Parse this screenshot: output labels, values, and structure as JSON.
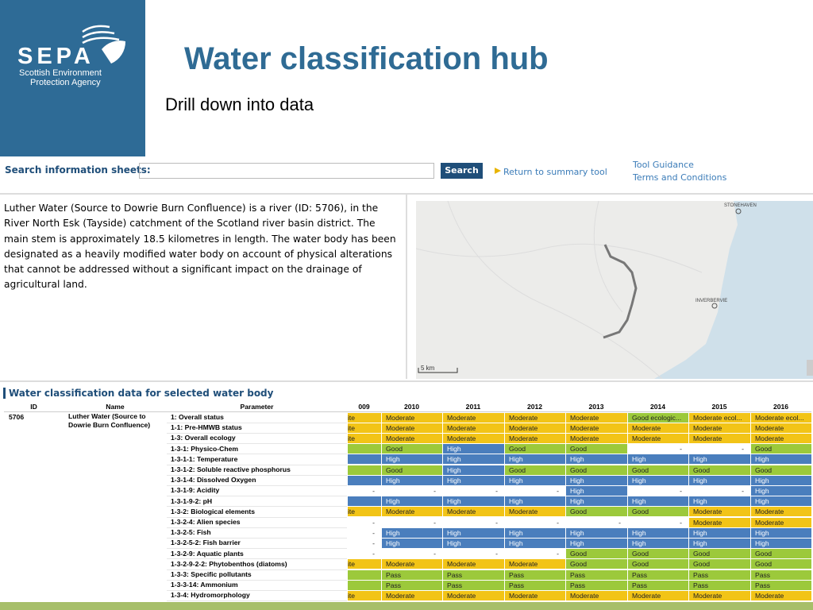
{
  "logo": {
    "name": "SEPA",
    "line1": "Scottish Environment",
    "line2": "Protection Agency"
  },
  "header": {
    "title": "Water classification hub",
    "subtitle": "Drill down into data"
  },
  "search": {
    "label": "Search information sheets:",
    "button": "Search",
    "return_link": "Return to summary tool",
    "links": [
      "Tool Guidance",
      "Terms and Conditions"
    ]
  },
  "description": "Luther Water (Source to Dowrie Burn Confluence) is a river (ID: 5706), in the River North Esk (Tayside) catchment of the Scotland river basin district. The main stem is approximately 18.5 kilometres in length. The water body has been designated as a heavily modified water body on account of physical alterations that cannot be addressed without a significant impact on the drainage of agricultural land.",
  "map": {
    "labels": [
      "STONEHAVEN",
      "INVERBERVIE"
    ],
    "scale": "5 km"
  },
  "table": {
    "title": "Water classification data for selected water body",
    "headers": [
      "ID",
      "Name",
      "Parameter",
      "009",
      "2010",
      "2011",
      "2012",
      "2013",
      "2014",
      "2015",
      "2016"
    ],
    "id": "5706",
    "name": "Luther Water (Source to Dowrie Burn Confluence)",
    "colors": {
      "moderate": "#f2c417",
      "good": "#9cc93b",
      "high": "#4a7ebd"
    },
    "rows": [
      {
        "parameter": "1: Overall status",
        "cells": [
          "ite",
          "Moderate",
          "Moderate",
          "Moderate",
          "Moderate",
          "Good ecologic...",
          "Moderate ecol...",
          "Moderate ecol..."
        ],
        "fills": [
          "moderate",
          "moderate",
          "moderate",
          "moderate",
          "moderate",
          "good",
          "moderate",
          "moderate"
        ]
      },
      {
        "parameter": "1-1: Pre-HMWB status",
        "cells": [
          "ite",
          "Moderate",
          "Moderate",
          "Moderate",
          "Moderate",
          "Moderate",
          "Moderate",
          "Moderate"
        ],
        "fills": [
          "moderate",
          "moderate",
          "moderate",
          "moderate",
          "moderate",
          "moderate",
          "moderate",
          "moderate"
        ]
      },
      {
        "parameter": "1-3: Overall ecology",
        "cells": [
          "ite",
          "Moderate",
          "Moderate",
          "Moderate",
          "Moderate",
          "Moderate",
          "Moderate",
          "Moderate"
        ],
        "fills": [
          "moderate",
          "moderate",
          "moderate",
          "moderate",
          "moderate",
          "moderate",
          "moderate",
          "moderate"
        ]
      },
      {
        "parameter": "1-3-1: Physico-Chem",
        "cells": [
          null,
          "Good",
          "High",
          "Good",
          "Good",
          "-",
          "-",
          "Good"
        ],
        "fills": [
          "good",
          "good",
          "high",
          "good",
          "good",
          null,
          null,
          "good"
        ]
      },
      {
        "parameter": "1-3-1-1: Temperature",
        "cells": [
          null,
          "High",
          "High",
          "High",
          "High",
          "High",
          "High",
          "High"
        ],
        "fills": [
          "high",
          "high",
          "high",
          "high",
          "high",
          "high",
          "high",
          "high"
        ]
      },
      {
        "parameter": "1-3-1-2: Soluble reactive phosphorus",
        "cells": [
          null,
          "Good",
          "High",
          "Good",
          "Good",
          "Good",
          "Good",
          "Good"
        ],
        "fills": [
          "good",
          "good",
          "high",
          "good",
          "good",
          "good",
          "good",
          "good"
        ]
      },
      {
        "parameter": "1-3-1-4: Dissolved Oxygen",
        "cells": [
          null,
          "High",
          "High",
          "High",
          "High",
          "High",
          "High",
          "High"
        ],
        "fills": [
          "high",
          "high",
          "high",
          "high",
          "high",
          "high",
          "high",
          "high"
        ]
      },
      {
        "parameter": "1-3-1-9: Acidity",
        "cells": [
          "-",
          "-",
          "-",
          "-",
          "High",
          "-",
          "-",
          "High"
        ],
        "fills": [
          null,
          null,
          null,
          null,
          "high",
          null,
          null,
          "high"
        ]
      },
      {
        "parameter": "1-3-1-9-2: pH",
        "cells": [
          null,
          "High",
          "High",
          "High",
          "High",
          "High",
          "High",
          "High"
        ],
        "fills": [
          "high",
          "high",
          "high",
          "high",
          "high",
          "high",
          "high",
          "high"
        ]
      },
      {
        "parameter": "1-3-2: Biological elements",
        "cells": [
          "ite",
          "Moderate",
          "Moderate",
          "Moderate",
          "Good",
          "Good",
          "Moderate",
          "Moderate"
        ],
        "fills": [
          "moderate",
          "moderate",
          "moderate",
          "moderate",
          "good",
          "good",
          "moderate",
          "moderate"
        ]
      },
      {
        "parameter": "1-3-2-4: Alien species",
        "cells": [
          "-",
          "-",
          "-",
          "-",
          "-",
          "-",
          "Moderate",
          "Moderate"
        ],
        "fills": [
          null,
          null,
          null,
          null,
          null,
          null,
          "moderate",
          "moderate"
        ]
      },
      {
        "parameter": "1-3-2-5: Fish",
        "cells": [
          "-",
          "High",
          "High",
          "High",
          "High",
          "High",
          "High",
          "High"
        ],
        "fills": [
          null,
          "high",
          "high",
          "high",
          "high",
          "high",
          "high",
          "high"
        ]
      },
      {
        "parameter": "1-3-2-5-2: Fish barrier",
        "cells": [
          "-",
          "High",
          "High",
          "High",
          "High",
          "High",
          "High",
          "High"
        ],
        "fills": [
          null,
          "high",
          "high",
          "high",
          "high",
          "high",
          "high",
          "high"
        ]
      },
      {
        "parameter": "1-3-2-9: Aquatic plants",
        "cells": [
          "-",
          "-",
          "-",
          "-",
          "Good",
          "Good",
          "Good",
          "Good"
        ],
        "fills": [
          null,
          null,
          null,
          null,
          "good",
          "good",
          "good",
          "good"
        ]
      },
      {
        "parameter": "1-3-2-9-2-2: Phytobenthos (diatoms)",
        "cells": [
          "ite",
          "Moderate",
          "Moderate",
          "Moderate",
          "Good",
          "Good",
          "Good",
          "Good"
        ],
        "fills": [
          "moderate",
          "moderate",
          "moderate",
          "moderate",
          "good",
          "good",
          "good",
          "good"
        ]
      },
      {
        "parameter": "1-3-3: Specific pollutants",
        "cells": [
          null,
          "Pass",
          "Pass",
          "Pass",
          "Pass",
          "Pass",
          "Pass",
          "Pass"
        ],
        "fills": [
          "good",
          "good",
          "good",
          "good",
          "good",
          "good",
          "good",
          "good"
        ]
      },
      {
        "parameter": "1-3-3-14: Ammonium",
        "cells": [
          null,
          "Pass",
          "Pass",
          "Pass",
          "Pass",
          "Pass",
          "Pass",
          "Pass"
        ],
        "fills": [
          "good",
          "good",
          "good",
          "good",
          "good",
          "good",
          "good",
          "good"
        ]
      },
      {
        "parameter": "1-3-4: Hydromorphology",
        "cells": [
          "ite",
          "Moderate",
          "Moderate",
          "Moderate",
          "Moderate",
          "Moderate",
          "Moderate",
          "Moderate"
        ],
        "fills": [
          "moderate",
          "moderate",
          "moderate",
          "moderate",
          "moderate",
          "moderate",
          "moderate",
          "moderate"
        ]
      }
    ]
  }
}
